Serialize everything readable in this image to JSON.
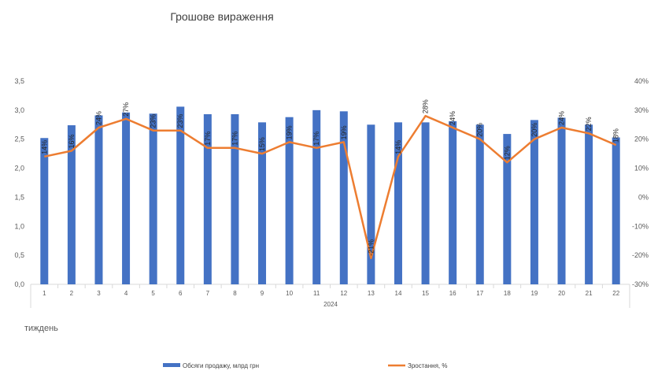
{
  "chart_data": {
    "type": "bar",
    "title": "Грошове вираження",
    "xlabel": "тиждень",
    "x_group_label": "2024",
    "categories": [
      "1",
      "2",
      "3",
      "4",
      "5",
      "6",
      "7",
      "8",
      "9",
      "10",
      "11",
      "12",
      "13",
      "14",
      "15",
      "16",
      "17",
      "18",
      "19",
      "20",
      "21",
      "22"
    ],
    "series": [
      {
        "name": "Обсяги продажу, млрд грн",
        "type": "bar",
        "axis": "left",
        "color": "#4472C4",
        "values": [
          2.52,
          2.74,
          2.91,
          2.96,
          2.94,
          3.06,
          2.93,
          2.93,
          2.79,
          2.88,
          3.0,
          2.98,
          2.75,
          2.79,
          2.79,
          2.81,
          2.75,
          2.59,
          2.83,
          2.87,
          2.75,
          2.53
        ]
      },
      {
        "name": "Зростання, %",
        "type": "line",
        "axis": "right",
        "color": "#ED7D31",
        "values": [
          14,
          16,
          24,
          27,
          23,
          23,
          17,
          17,
          15,
          19,
          17,
          19,
          -21,
          14,
          28,
          24,
          20,
          12,
          20,
          24,
          22,
          18
        ],
        "data_labels": [
          "14%",
          "16%",
          "24%",
          "27%",
          "23%",
          "23%",
          "17%",
          "17%",
          "15%",
          "19%",
          "17%",
          "19%",
          "-21%",
          "14%",
          "28%",
          "24%",
          "20%",
          "12%",
          "20%",
          "24%",
          "22%",
          "18%"
        ]
      }
    ],
    "y_left": {
      "ticks": [
        "0,0",
        "0,5",
        "1,0",
        "1,5",
        "2,0",
        "2,5",
        "3,0",
        "3,5"
      ],
      "min": 0,
      "max": 3.5,
      "step": 0.5
    },
    "y_right": {
      "ticks": [
        "-30%",
        "-20%",
        "-10%",
        "0%",
        "10%",
        "20%",
        "30%",
        "40%"
      ],
      "min": -30,
      "max": 40,
      "step": 10
    },
    "grid": false,
    "legend_position": "bottom"
  }
}
